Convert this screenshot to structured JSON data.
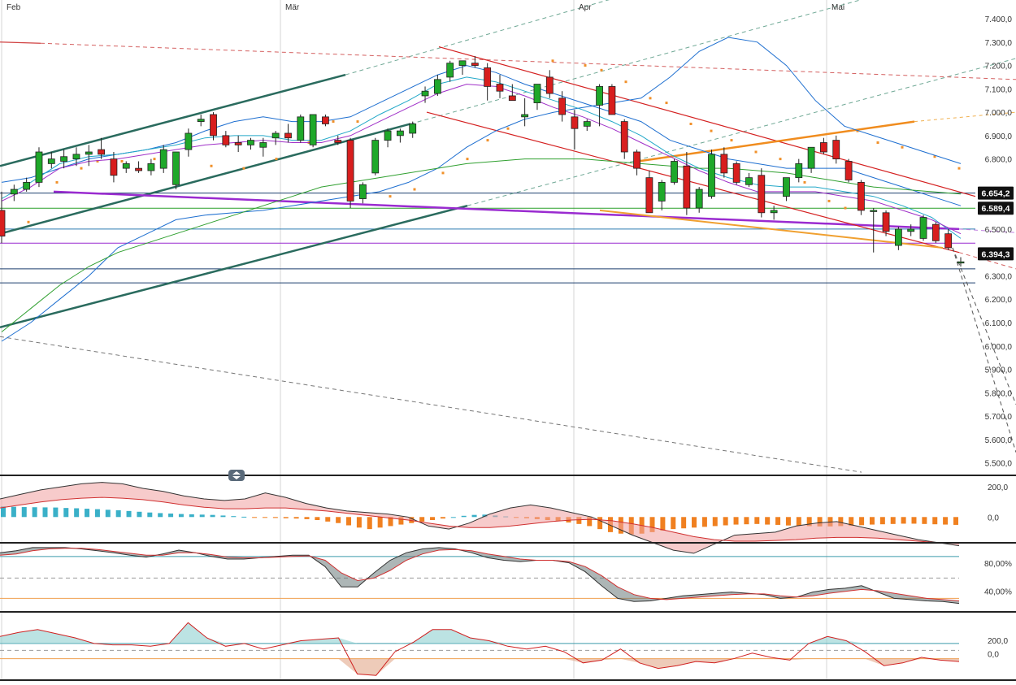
{
  "chart_data": [
    {
      "type": "candlestick",
      "title": "",
      "months": [
        "Feb",
        "Mär",
        "Apr",
        "Mai"
      ],
      "ylim": [
        5450,
        7480
      ],
      "yticks": [
        {
          "v": 7400,
          "label": "7.400,0"
        },
        {
          "v": 7300,
          "label": "7.300,0"
        },
        {
          "v": 7200,
          "label": "7.200,0"
        },
        {
          "v": 7100,
          "label": "7.100,0"
        },
        {
          "v": 7000,
          "label": "7.000,0"
        },
        {
          "v": 6900,
          "label": "6.900,0"
        },
        {
          "v": 6800,
          "label": "6.800,0"
        },
        {
          "v": 6500,
          "label": "6.500,0"
        },
        {
          "v": 6300,
          "label": "6.300,0"
        },
        {
          "v": 6200,
          "label": "6.200,0"
        },
        {
          "v": 6100,
          "label": "6.100,0"
        },
        {
          "v": 6000,
          "label": "6.000,0"
        },
        {
          "v": 5900,
          "label": "5.900,0"
        },
        {
          "v": 5800,
          "label": "5.800,0"
        },
        {
          "v": 5700,
          "label": "5.700,0"
        },
        {
          "v": 5600,
          "label": "5.600,0"
        },
        {
          "v": 5500,
          "label": "5.500,0"
        }
      ],
      "price_labels": [
        {
          "v": 6654.2,
          "label": "6.654,2"
        },
        {
          "v": 6589.4,
          "label": "6.589,4"
        },
        {
          "v": 6394.3,
          "label": "6.394,3"
        }
      ],
      "candles": [
        [
          6580,
          6660,
          6440,
          6470
        ],
        [
          6650,
          6690,
          6620,
          6670
        ],
        [
          6670,
          6720,
          6660,
          6700
        ],
        [
          6700,
          6850,
          6680,
          6830
        ],
        [
          6780,
          6830,
          6760,
          6800
        ],
        [
          6790,
          6840,
          6760,
          6810
        ],
        [
          6800,
          6850,
          6770,
          6820
        ],
        [
          6820,
          6860,
          6770,
          6830
        ],
        [
          6840,
          6890,
          6800,
          6820
        ],
        [
          6800,
          6830,
          6700,
          6730
        ],
        [
          6760,
          6790,
          6740,
          6780
        ],
        [
          6760,
          6790,
          6740,
          6750
        ],
        [
          6750,
          6800,
          6730,
          6780
        ],
        [
          6760,
          6860,
          6740,
          6840
        ],
        [
          6690,
          6820,
          6670,
          6830
        ],
        [
          6840,
          6930,
          6810,
          6910
        ],
        [
          6960,
          6990,
          6940,
          6970
        ],
        [
          6990,
          7000,
          6880,
          6900
        ],
        [
          6900,
          6920,
          6850,
          6860
        ],
        [
          6870,
          6900,
          6830,
          6860
        ],
        [
          6860,
          6890,
          6840,
          6880
        ],
        [
          6850,
          6890,
          6810,
          6870
        ],
        [
          6890,
          6920,
          6860,
          6910
        ],
        [
          6910,
          6950,
          6870,
          6890
        ],
        [
          6880,
          6990,
          6870,
          6980
        ],
        [
          6860,
          6990,
          6850,
          6990
        ],
        [
          6980,
          6990,
          6940,
          6950
        ],
        [
          6880,
          6900,
          6860,
          6870
        ],
        [
          6880,
          6890,
          6590,
          6620
        ],
        [
          6630,
          6700,
          6610,
          6690
        ],
        [
          6740,
          6890,
          6730,
          6880
        ],
        [
          6880,
          6930,
          6850,
          6920
        ],
        [
          6900,
          6930,
          6870,
          6920
        ],
        [
          6910,
          6960,
          6890,
          6950
        ],
        [
          7070,
          7110,
          7040,
          7090
        ],
        [
          7080,
          7160,
          7070,
          7140
        ],
        [
          7150,
          7220,
          7130,
          7210
        ],
        [
          7200,
          7220,
          7160,
          7220
        ],
        [
          7210,
          7240,
          7190,
          7200
        ],
        [
          7190,
          7210,
          7050,
          7110
        ],
        [
          7120,
          7160,
          7060,
          7090
        ],
        [
          7070,
          7120,
          7060,
          7050
        ],
        [
          6980,
          7060,
          6940,
          6990
        ],
        [
          7040,
          7120,
          7010,
          7120
        ],
        [
          7150,
          7180,
          7060,
          7080
        ],
        [
          7060,
          7090,
          6960,
          6990
        ],
        [
          6980,
          7010,
          6840,
          6930
        ],
        [
          6940,
          6970,
          6920,
          6960
        ],
        [
          7030,
          7120,
          6940,
          7110
        ],
        [
          7110,
          7120,
          7000,
          6990
        ],
        [
          6960,
          6970,
          6800,
          6830
        ],
        [
          6830,
          6840,
          6730,
          6760
        ],
        [
          6720,
          6750,
          6570,
          6570
        ],
        [
          6620,
          6710,
          6580,
          6700
        ],
        [
          6700,
          6800,
          6690,
          6790
        ],
        [
          6770,
          6830,
          6560,
          6590
        ],
        [
          6590,
          6680,
          6570,
          6670
        ],
        [
          6640,
          6840,
          6630,
          6820
        ],
        [
          6820,
          6850,
          6720,
          6740
        ],
        [
          6780,
          6790,
          6690,
          6700
        ],
        [
          6690,
          6740,
          6680,
          6720
        ],
        [
          6730,
          6760,
          6550,
          6570
        ],
        [
          6570,
          6600,
          6540,
          6580
        ],
        [
          6640,
          6720,
          6620,
          6720
        ],
        [
          6720,
          6800,
          6700,
          6780
        ],
        [
          6760,
          6850,
          6740,
          6850
        ],
        [
          6870,
          6890,
          6820,
          6830
        ],
        [
          6880,
          6900,
          6780,
          6800
        ],
        [
          6790,
          6800,
          6700,
          6710
        ],
        [
          6700,
          6710,
          6560,
          6580
        ],
        [
          6580,
          6590,
          6400,
          6580
        ],
        [
          6570,
          6580,
          6470,
          6490
        ],
        [
          6430,
          6510,
          6410,
          6500
        ],
        [
          6490,
          6520,
          6470,
          6500
        ],
        [
          6460,
          6560,
          6450,
          6550
        ],
        [
          6520,
          6530,
          6440,
          6450
        ],
        [
          6480,
          6500,
          6410,
          6420
        ],
        [
          6360,
          6380,
          6340,
          6360
        ]
      ],
      "macd_panel": {
        "ytick_labels": [
          "200,0",
          "0,0"
        ],
        "histogram": [
          70,
          68,
          66,
          65,
          64,
          63,
          60,
          58,
          55,
          52,
          48,
          45,
          40,
          35,
          30,
          26,
          23,
          20,
          18,
          16,
          14,
          10,
          6,
          2,
          -2,
          -4,
          -6,
          -8,
          -10,
          -14,
          -20,
          -30,
          -40,
          -55,
          -70,
          -80,
          -70,
          -60,
          -50,
          -40,
          -30,
          -20,
          -10,
          0,
          8,
          14,
          16,
          10,
          4,
          -2,
          -8,
          -14,
          -20,
          -28,
          -36,
          -46,
          -60,
          -80,
          -100,
          -110,
          -115,
          -110,
          -100,
          -90,
          -80,
          -75,
          -70,
          -65,
          -60,
          -55,
          -50,
          -48,
          -46,
          -50,
          -52,
          -56,
          -58,
          -60,
          -62,
          -62,
          -60,
          -58,
          -54,
          -50,
          -48,
          -46,
          -44,
          -44,
          -46,
          -48,
          -50,
          -52
        ],
        "macd": [
          120,
          150,
          180,
          200,
          220,
          230,
          220,
          190,
          170,
          140,
          120,
          110,
          120,
          160,
          130,
          90,
          60,
          40,
          30,
          20,
          0,
          -60,
          -80,
          -40,
          20,
          60,
          80,
          60,
          30,
          0,
          -60,
          -120,
          -170,
          -220,
          -240,
          -180,
          -120,
          -110,
          -100,
          -60,
          -40,
          -30,
          -60,
          -90,
          -120,
          -150,
          -170,
          -190
        ],
        "signal": [
          60,
          80,
          100,
          115,
          125,
          130,
          125,
          115,
          100,
          80,
          65,
          55,
          55,
          60,
          60,
          50,
          40,
          25,
          10,
          -5,
          -20,
          -40,
          -60,
          -70,
          -70,
          -60,
          -45,
          -30,
          -20,
          -15,
          -25,
          -45,
          -70,
          -100,
          -130,
          -150,
          -160,
          -160,
          -155,
          -150,
          -140,
          -135,
          -135,
          -140,
          -150,
          -160,
          -170,
          -175
        ]
      },
      "stoch_panel": {
        "ytick_labels": [
          "80,00%",
          "40,00%"
        ],
        "k": [
          92,
          95,
          100,
          100,
          100,
          98,
          95,
          92,
          88,
          85,
          90,
          96,
          92,
          86,
          82,
          82,
          84,
          86,
          88,
          88,
          70,
          38,
          38,
          60,
          80,
          92,
          98,
          100,
          98,
          92,
          84,
          80,
          78,
          80,
          80,
          76,
          62,
          40,
          20,
          15,
          16,
          20,
          24,
          26,
          28,
          30,
          28,
          26,
          20,
          22,
          30,
          34,
          36,
          40,
          30,
          20,
          18,
          16,
          15,
          12
        ],
        "d": [
          88,
          90,
          95,
          98,
          99,
          99,
          97,
          94,
          91,
          88,
          88,
          92,
          92,
          89,
          85,
          84,
          84,
          85,
          86,
          87,
          80,
          60,
          48,
          52,
          64,
          80,
          90,
          96,
          97,
          95,
          90,
          86,
          82,
          80,
          80,
          78,
          70,
          56,
          38,
          26,
          20,
          18,
          20,
          22,
          24,
          26,
          27,
          27,
          24,
          22,
          24,
          28,
          31,
          34,
          32,
          28,
          24,
          20,
          18,
          16
        ]
      },
      "cci_panel": {
        "ytick_labels": [
          "200,0",
          "0,0"
        ],
        "values": [
          150,
          180,
          200,
          170,
          140,
          100,
          90,
          90,
          80,
          100,
          250,
          140,
          80,
          100,
          60,
          90,
          120,
          130,
          140,
          -120,
          -130,
          40,
          110,
          200,
          200,
          140,
          120,
          80,
          60,
          80,
          40,
          -40,
          -20,
          60,
          -40,
          -80,
          -60,
          -30,
          -40,
          -10,
          30,
          0,
          -20,
          100,
          150,
          120,
          40,
          -60,
          -40,
          0,
          -20,
          -30
        ]
      }
    }
  ]
}
